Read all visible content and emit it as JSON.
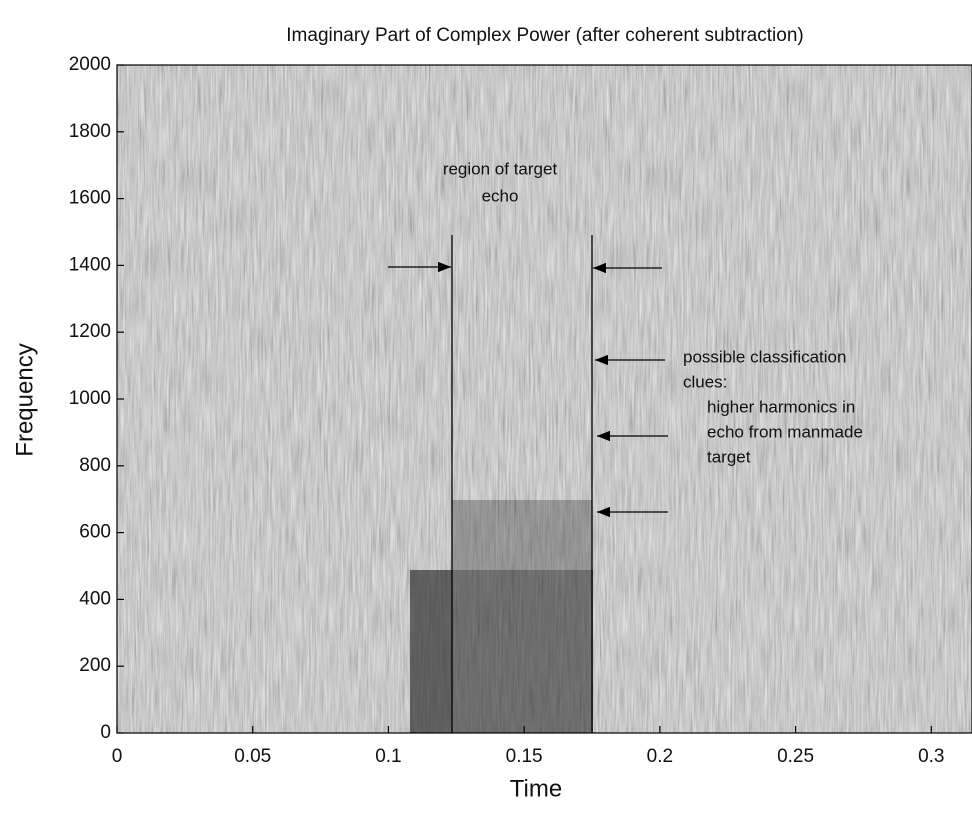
{
  "chart_data": {
    "type": "spectrogram",
    "title": "Imaginary Part of Complex Power (after coherent subtraction)",
    "x_label": "Time",
    "y_label": "Frequency",
    "xlim": [
      0,
      0.315
    ],
    "xticks": [
      0,
      0.05,
      0.1,
      0.15,
      0.2,
      0.25,
      0.3
    ],
    "ylim": [
      0,
      2000
    ],
    "yticks": [
      0,
      200,
      400,
      600,
      800,
      1000,
      1200,
      1400,
      1600,
      1800,
      2000
    ],
    "annotations": [
      {
        "lines": [
          "region of target",
          "echo"
        ]
      },
      {
        "lines": [
          "possible classification",
          "clues:",
          "higher harmonics in",
          "echo from manmade",
          "target"
        ]
      }
    ]
  }
}
